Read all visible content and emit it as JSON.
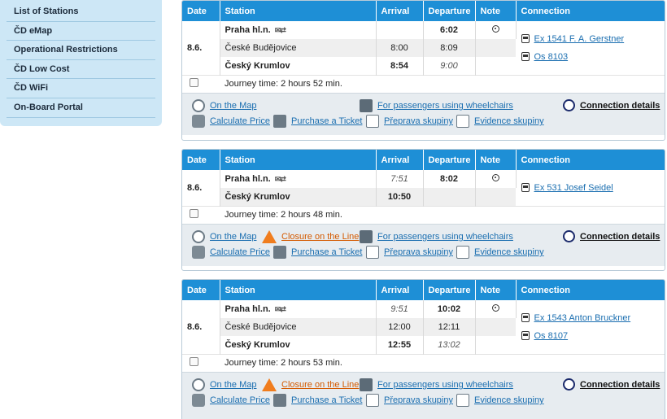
{
  "sidebar": {
    "items": [
      {
        "label": "List of Stations"
      },
      {
        "label": "ČD eMap"
      },
      {
        "label": "Operational Restrictions"
      },
      {
        "label": "ČD Low Cost"
      },
      {
        "label": "ČD WiFi"
      },
      {
        "label": "On-Board Portal"
      }
    ]
  },
  "columns": {
    "date": "Date",
    "station": "Station",
    "arrival": "Arrival",
    "departure": "Departure",
    "note": "Note",
    "connection": "Connection"
  },
  "actions": {
    "on_map": "On the Map",
    "calculate_price": "Calculate Price",
    "purchase_ticket": "Purchase a Ticket",
    "wheelchairs": "For passengers using wheelchairs",
    "groups": "Přeprava skupiny",
    "evidence": "Evidence skupiny",
    "closure": "Closure on the Line",
    "details": "Connection details"
  },
  "connections": [
    {
      "date": "8.6.",
      "journey": "Journey time: 2 hours 52 min.",
      "stops": [
        {
          "station": "Praha hl.n.",
          "arrival": "",
          "departure": "6:02"
        },
        {
          "station": "České Budějovice",
          "arrival": "8:00",
          "departure": "8:09"
        },
        {
          "station": "Český Krumlov",
          "arrival": "8:54",
          "departure": "9:00"
        }
      ],
      "trains": [
        "Ex 1541 F. A. Gerstner",
        "Os 8103"
      ]
    },
    {
      "date": "8.6.",
      "journey": "Journey time: 2 hours 48 min.",
      "stops": [
        {
          "station": "Praha hl.n.",
          "arrival": "7:51",
          "departure": "8:02"
        },
        {
          "station": "Český Krumlov",
          "arrival": "10:50",
          "departure": ""
        }
      ],
      "trains": [
        "Ex 531 Josef Seidel"
      ]
    },
    {
      "date": "8.6.",
      "journey": "Journey time: 2 hours 53 min.",
      "stops": [
        {
          "station": "Praha hl.n.",
          "arrival": "9:51",
          "departure": "10:02"
        },
        {
          "station": "České Budějovice",
          "arrival": "12:00",
          "departure": "12:11"
        },
        {
          "station": "Český Krumlov",
          "arrival": "12:55",
          "departure": "13:02"
        }
      ],
      "trains": [
        "Ex 1543 Anton Bruckner",
        "Os 8107"
      ]
    }
  ]
}
